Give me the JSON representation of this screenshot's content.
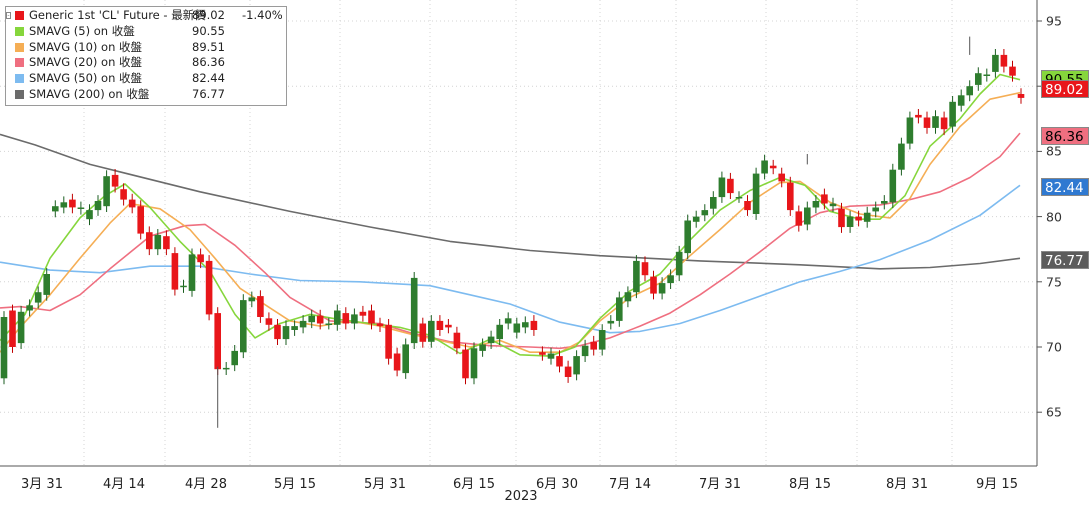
{
  "legend": {
    "title": {
      "name": "Generic 1st 'CL' Future - 最新價",
      "value": "89.02",
      "change": "-1.40%",
      "color": "#e8161a"
    },
    "items": [
      {
        "name": "SMAVG (5)  on 收盤",
        "value": "90.55",
        "color": "#86d63c"
      },
      {
        "name": "SMAVG (10)  on 收盤",
        "value": "89.51",
        "color": "#f5ae55"
      },
      {
        "name": "SMAVG (20)  on 收盤",
        "value": "86.36",
        "color": "#ef6f80"
      },
      {
        "name": "SMAVG (50)  on 收盤",
        "value": "82.44",
        "color": "#7dbbf0"
      },
      {
        "name": "SMAVG (200)  on 收盤",
        "value": "76.77",
        "color": "#6b6b6b"
      }
    ]
  },
  "axis": {
    "y_ticks": [
      "95",
      "90",
      "85",
      "80",
      "75",
      "70",
      "65"
    ],
    "x_ticks": [
      "3月 31",
      "4月 14",
      "4月 28",
      "5月 15",
      "5月 31",
      "6月 15",
      "6月 30",
      "7月 14",
      "7月 31",
      "8月 15",
      "8月 31",
      "9月 15"
    ],
    "year_label": "2023"
  },
  "tags": [
    {
      "label": "90.55",
      "value": 90.55,
      "bg": "#86d63c",
      "fg": "#000000"
    },
    {
      "label": "89.02",
      "value": 89.02,
      "bg": "#e8161a",
      "fg": "#ffffff"
    },
    {
      "label": "86.36",
      "value": 86.36,
      "bg": "#ef6f80",
      "fg": "#000000"
    },
    {
      "label": "82.44",
      "value": 82.44,
      "bg": "#2f79d1",
      "fg": "#ffffff"
    },
    {
      "label": "76.77",
      "value": 76.77,
      "bg": "#5c5c5c",
      "fg": "#ffffff"
    }
  ],
  "chart_data": {
    "type": "line",
    "y_range": [
      60.5,
      96.5
    ],
    "candles": [
      [
        67.6,
        72.3
      ],
      [
        72.8,
        70.0
      ],
      [
        70.3,
        72.7
      ],
      [
        72.8,
        73.2
      ],
      [
        73.4,
        74.2
      ],
      [
        74.0,
        75.6
      ],
      [
        80.4,
        80.8
      ],
      [
        80.7,
        81.1
      ],
      [
        81.3,
        80.7
      ],
      [
        80.6,
        80.7
      ],
      [
        79.8,
        80.5
      ],
      [
        80.5,
        81.2
      ],
      [
        80.8,
        83.1
      ],
      [
        83.2,
        82.3
      ],
      [
        82.1,
        81.3
      ],
      [
        81.3,
        80.7
      ],
      [
        80.8,
        78.7
      ],
      [
        78.8,
        77.5
      ],
      [
        77.5,
        78.6
      ],
      [
        78.5,
        77.5
      ],
      [
        77.2,
        74.4
      ],
      [
        74.6,
        74.7
      ],
      [
        74.3,
        77.1
      ],
      [
        77.1,
        76.5
      ],
      [
        76.6,
        72.5
      ],
      [
        72.6,
        68.3
      ],
      [
        68.3,
        68.4
      ],
      [
        68.6,
        69.7
      ],
      [
        69.6,
        73.6
      ],
      [
        73.5,
        73.8
      ],
      [
        73.9,
        72.3
      ],
      [
        72.2,
        71.7
      ],
      [
        71.7,
        70.6
      ],
      [
        70.6,
        71.6
      ],
      [
        71.3,
        71.6
      ],
      [
        71.5,
        72.0
      ],
      [
        71.9,
        72.4
      ],
      [
        72.4,
        71.8
      ],
      [
        71.8,
        71.8
      ],
      [
        71.7,
        72.8
      ],
      [
        72.6,
        71.8
      ],
      [
        71.8,
        72.5
      ],
      [
        72.7,
        72.4
      ],
      [
        72.8,
        71.8
      ],
      [
        71.8,
        71.6
      ],
      [
        71.7,
        69.1
      ],
      [
        69.5,
        68.2
      ],
      [
        68.0,
        70.2
      ],
      [
        70.3,
        75.3
      ],
      [
        71.8,
        70.4
      ],
      [
        70.4,
        72.0
      ],
      [
        72.0,
        71.3
      ],
      [
        71.7,
        71.5
      ],
      [
        71.1,
        69.9
      ],
      [
        69.8,
        67.6
      ],
      [
        67.6,
        69.9
      ],
      [
        69.7,
        70.2
      ],
      [
        70.3,
        70.8
      ],
      [
        70.6,
        71.7
      ],
      [
        71.8,
        72.2
      ],
      [
        71.1,
        71.8
      ],
      [
        71.5,
        71.9
      ],
      [
        72.0,
        71.3
      ],
      [
        69.6,
        69.4
      ],
      [
        69.1,
        69.5
      ],
      [
        69.3,
        68.5
      ],
      [
        68.5,
        67.7
      ],
      [
        67.9,
        69.3
      ],
      [
        69.3,
        70.1
      ],
      [
        70.4,
        69.8
      ],
      [
        69.8,
        71.3
      ],
      [
        71.8,
        72.0
      ],
      [
        72.0,
        73.8
      ],
      [
        73.5,
        74.2
      ],
      [
        74.2,
        76.6
      ],
      [
        76.5,
        75.5
      ],
      [
        75.4,
        74.1
      ],
      [
        74.1,
        74.9
      ],
      [
        74.9,
        75.5
      ],
      [
        75.5,
        77.3
      ],
      [
        77.2,
        79.7
      ],
      [
        79.6,
        80.0
      ],
      [
        80.1,
        80.5
      ],
      [
        80.6,
        81.5
      ],
      [
        81.5,
        83.0
      ],
      [
        82.9,
        81.8
      ],
      [
        81.5,
        81.5
      ],
      [
        81.2,
        80.5
      ],
      [
        80.2,
        83.3
      ],
      [
        83.3,
        84.3
      ],
      [
        83.9,
        83.7
      ],
      [
        83.3,
        82.7
      ],
      [
        82.6,
        80.5
      ],
      [
        80.4,
        79.3
      ],
      [
        79.4,
        80.7
      ],
      [
        80.7,
        81.2
      ],
      [
        81.7,
        81.0
      ],
      [
        80.8,
        81.0
      ],
      [
        80.6,
        79.2
      ],
      [
        79.2,
        80.0
      ],
      [
        80.0,
        79.7
      ],
      [
        79.6,
        80.3
      ],
      [
        80.4,
        80.7
      ],
      [
        81.0,
        81.2
      ],
      [
        81.1,
        83.6
      ],
      [
        83.6,
        85.6
      ],
      [
        85.6,
        87.6
      ],
      [
        87.8,
        87.6
      ],
      [
        87.6,
        86.8
      ],
      [
        86.8,
        87.7
      ],
      [
        87.6,
        86.7
      ],
      [
        86.9,
        88.8
      ],
      [
        88.5,
        89.3
      ],
      [
        89.3,
        90.0
      ],
      [
        90.1,
        91.0
      ],
      [
        90.8,
        90.9
      ],
      [
        91.1,
        92.4
      ],
      [
        92.4,
        91.5
      ],
      [
        91.5,
        90.8
      ],
      [
        89.4,
        89.1
      ]
    ],
    "sma200": [
      [
        0,
        86.3
      ],
      [
        35,
        85.5
      ],
      [
        90,
        84.0
      ],
      [
        200,
        81.9
      ],
      [
        290,
        80.4
      ],
      [
        370,
        79.2
      ],
      [
        450,
        78.1
      ],
      [
        530,
        77.4
      ],
      [
        600,
        77.0
      ],
      [
        700,
        76.6
      ],
      [
        800,
        76.3
      ],
      [
        880,
        76.0
      ],
      [
        930,
        76.1
      ],
      [
        980,
        76.4
      ],
      [
        1020,
        76.8
      ]
    ],
    "sma50": [
      [
        0,
        76.5
      ],
      [
        50,
        75.9
      ],
      [
        100,
        75.7
      ],
      [
        150,
        76.2
      ],
      [
        200,
        76.2
      ],
      [
        250,
        75.6
      ],
      [
        300,
        75.1
      ],
      [
        360,
        75.0
      ],
      [
        430,
        74.7
      ],
      [
        470,
        74.0
      ],
      [
        510,
        73.3
      ],
      [
        560,
        71.9
      ],
      [
        610,
        71.1
      ],
      [
        640,
        71.2
      ],
      [
        680,
        71.8
      ],
      [
        720,
        72.8
      ],
      [
        760,
        73.9
      ],
      [
        800,
        75.0
      ],
      [
        840,
        75.8
      ],
      [
        880,
        76.7
      ],
      [
        930,
        78.2
      ],
      [
        980,
        80.1
      ],
      [
        1020,
        82.4
      ]
    ],
    "sma20": [
      [
        0,
        73.0
      ],
      [
        20,
        73.1
      ],
      [
        50,
        72.8
      ],
      [
        80,
        74.0
      ],
      [
        110,
        76.0
      ],
      [
        150,
        78.5
      ],
      [
        185,
        79.3
      ],
      [
        205,
        79.4
      ],
      [
        235,
        77.8
      ],
      [
        265,
        75.7
      ],
      [
        290,
        73.8
      ],
      [
        330,
        72.0
      ],
      [
        350,
        71.9
      ],
      [
        380,
        71.8
      ],
      [
        410,
        71.1
      ],
      [
        450,
        70.4
      ],
      [
        490,
        70.1
      ],
      [
        530,
        70.0
      ],
      [
        560,
        69.9
      ],
      [
        580,
        70.1
      ],
      [
        610,
        70.7
      ],
      [
        640,
        71.6
      ],
      [
        670,
        72.6
      ],
      [
        700,
        74.0
      ],
      [
        730,
        75.6
      ],
      [
        760,
        77.3
      ],
      [
        790,
        79.1
      ],
      [
        820,
        80.3
      ],
      [
        850,
        80.8
      ],
      [
        880,
        80.9
      ],
      [
        910,
        81.3
      ],
      [
        940,
        81.9
      ],
      [
        970,
        83.0
      ],
      [
        1000,
        84.6
      ],
      [
        1020,
        86.4
      ]
    ],
    "sma10": [
      [
        0,
        69.6
      ],
      [
        20,
        71.5
      ],
      [
        50,
        74.0
      ],
      [
        80,
        76.8
      ],
      [
        110,
        79.5
      ],
      [
        130,
        81.0
      ],
      [
        160,
        80.6
      ],
      [
        190,
        79.0
      ],
      [
        215,
        76.8
      ],
      [
        240,
        74.5
      ],
      [
        270,
        73.0
      ],
      [
        290,
        72.0
      ],
      [
        320,
        71.6
      ],
      [
        350,
        72.0
      ],
      [
        380,
        71.6
      ],
      [
        410,
        71.0
      ],
      [
        440,
        70.5
      ],
      [
        470,
        70.0
      ],
      [
        500,
        70.5
      ],
      [
        530,
        69.6
      ],
      [
        560,
        69.6
      ],
      [
        580,
        70.4
      ],
      [
        600,
        72.0
      ],
      [
        630,
        73.8
      ],
      [
        660,
        74.9
      ],
      [
        690,
        77.0
      ],
      [
        720,
        79.0
      ],
      [
        750,
        81.1
      ],
      [
        780,
        82.6
      ],
      [
        800,
        82.7
      ],
      [
        830,
        81.1
      ],
      [
        860,
        80.2
      ],
      [
        890,
        79.9
      ],
      [
        910,
        81.4
      ],
      [
        930,
        84.0
      ],
      [
        960,
        86.9
      ],
      [
        990,
        89.0
      ],
      [
        1020,
        89.5
      ]
    ],
    "sma5": [
      [
        0,
        70.5
      ],
      [
        25,
        72.5
      ],
      [
        50,
        76.8
      ],
      [
        80,
        79.9
      ],
      [
        105,
        81.6
      ],
      [
        125,
        82.5
      ],
      [
        150,
        80.7
      ],
      [
        180,
        78.1
      ],
      [
        210,
        75.8
      ],
      [
        235,
        72.5
      ],
      [
        255,
        70.7
      ],
      [
        280,
        71.8
      ],
      [
        310,
        72.5
      ],
      [
        340,
        72.1
      ],
      [
        370,
        71.8
      ],
      [
        400,
        71.5
      ],
      [
        430,
        70.9
      ],
      [
        460,
        69.5
      ],
      [
        490,
        70.6
      ],
      [
        520,
        69.4
      ],
      [
        550,
        69.3
      ],
      [
        575,
        70.0
      ],
      [
        600,
        72.2
      ],
      [
        630,
        74.3
      ],
      [
        660,
        75.6
      ],
      [
        690,
        78.2
      ],
      [
        720,
        80.5
      ],
      [
        750,
        82.0
      ],
      [
        780,
        83.0
      ],
      [
        805,
        82.4
      ],
      [
        830,
        80.4
      ],
      [
        860,
        79.8
      ],
      [
        880,
        79.8
      ],
      [
        905,
        81.6
      ],
      [
        930,
        85.4
      ],
      [
        960,
        87.5
      ],
      [
        980,
        89.4
      ],
      [
        1000,
        90.9
      ],
      [
        1020,
        90.5
      ]
    ]
  }
}
